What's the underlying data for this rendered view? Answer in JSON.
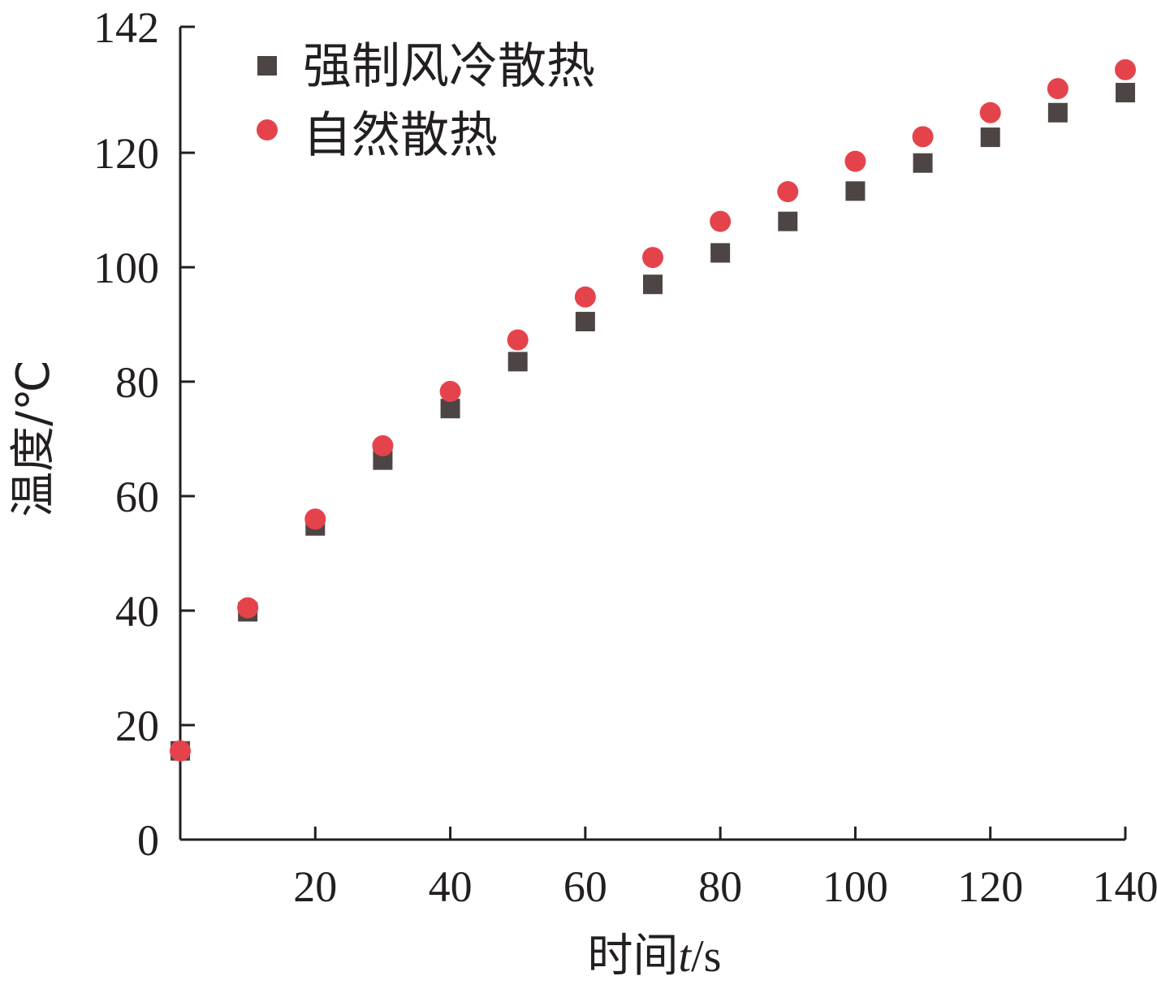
{
  "chart_data": {
    "type": "scatter",
    "xlabel_prefix": "时间",
    "xlabel_var": "t",
    "xlabel_unit": "/s",
    "ylabel": "温度/℃",
    "xlim": [
      0,
      140
    ],
    "ylim": [
      0,
      142
    ],
    "x_ticks": [
      20,
      40,
      60,
      80,
      100,
      120,
      140
    ],
    "y_ticks": [
      0,
      20,
      40,
      60,
      80,
      100,
      120,
      142
    ],
    "grid": false,
    "legend_position": "top-left",
    "series": [
      {
        "name": "强制风冷散热",
        "marker": "square",
        "color": "#4d4544",
        "x": [
          0,
          10,
          20,
          30,
          40,
          50,
          60,
          70,
          80,
          90,
          100,
          110,
          120,
          130,
          140
        ],
        "y": [
          15.5,
          39.8,
          54.8,
          66.3,
          75.3,
          83.5,
          90.5,
          97.0,
          102.5,
          108.0,
          113.3,
          118.2,
          122.7,
          127.0,
          130.5
        ]
      },
      {
        "name": "自然散热",
        "marker": "circle",
        "color": "#e5434b",
        "x": [
          0,
          10,
          20,
          30,
          40,
          50,
          60,
          70,
          80,
          90,
          100,
          110,
          120,
          130,
          140
        ],
        "y": [
          15.5,
          40.5,
          56.0,
          68.8,
          78.3,
          87.3,
          94.8,
          101.7,
          108.0,
          113.2,
          118.5,
          122.8,
          127.0,
          131.2,
          134.5
        ]
      }
    ]
  }
}
